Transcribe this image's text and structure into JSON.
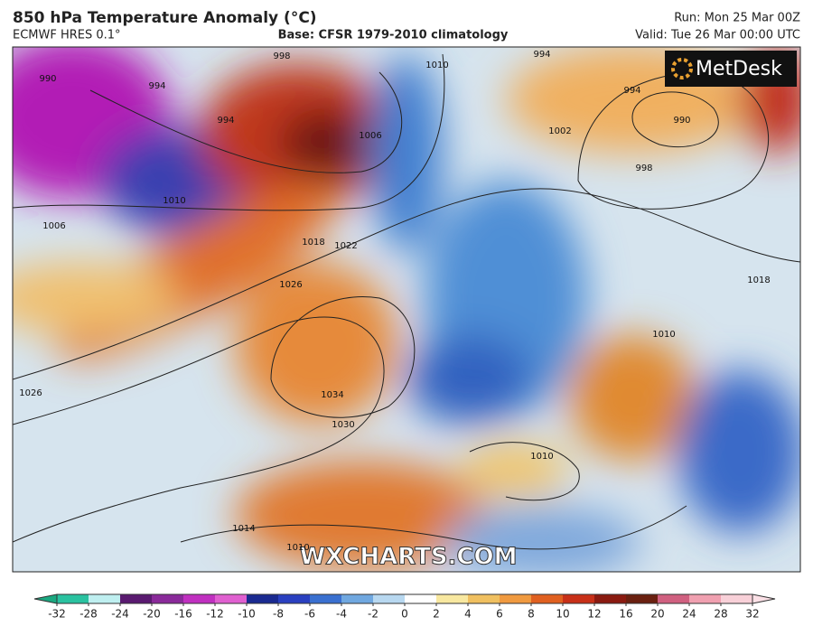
{
  "header": {
    "title": "850 hPa Temperature Anomaly (°C)",
    "model": "ECMWF HRES 0.1°",
    "base": "Base: CFSR 1979-2010 climatology",
    "run": "Run: Mon 25 Mar 00Z",
    "valid": "Valid: Tue 26 Mar 00:00 UTC"
  },
  "logo": "MetDesk",
  "watermark": "WXCHARTS.COM",
  "colorbar": {
    "ticks": [
      -32,
      -28,
      -24,
      -20,
      -16,
      -12,
      -10,
      -8,
      -6,
      -4,
      -2,
      0,
      2,
      4,
      6,
      8,
      10,
      12,
      16,
      20,
      24,
      28,
      32
    ]
  },
  "isobar_labels": [
    "998",
    "994",
    "990",
    "994",
    "1006",
    "1010",
    "1006",
    "1018",
    "1022",
    "1026",
    "1034",
    "1030",
    "1026",
    "1014",
    "1010",
    "1010",
    "994",
    "1002",
    "994",
    "990",
    "998",
    "1010",
    "1018",
    "1010"
  ]
}
